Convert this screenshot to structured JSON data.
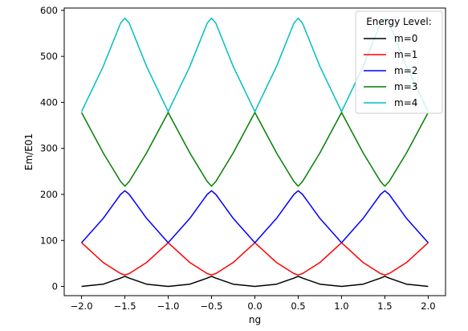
{
  "chart_data": {
    "type": "line",
    "title": "",
    "xlabel": "ng",
    "ylabel": "Em/E01",
    "xlim": [
      -2.2,
      2.2
    ],
    "ylim": [
      -20,
      605
    ],
    "x_ticks": [
      -2.0,
      -1.5,
      -1.0,
      -0.5,
      0.0,
      0.5,
      1.0,
      1.5,
      2.0
    ],
    "x_tick_labels": [
      "−2.0",
      "−1.5",
      "−1.0",
      "−0.5",
      "0.0",
      "0.5",
      "1.0",
      "1.5",
      "2.0"
    ],
    "y_ticks": [
      0,
      100,
      200,
      300,
      400,
      500,
      600
    ],
    "y_tick_labels": [
      "0",
      "100",
      "200",
      "300",
      "400",
      "500",
      "600"
    ],
    "grid": false,
    "legend": {
      "title": "Energy Level:",
      "placement": "top-right"
    },
    "series": [
      {
        "name": "m=0",
        "color": "#000000",
        "x": [
          -2.0,
          -1.75,
          -1.55,
          -1.5,
          -1.45,
          -1.25,
          -1.0,
          -0.75,
          -0.55,
          -0.5,
          -0.45,
          -0.25,
          0.0,
          0.25,
          0.45,
          0.5,
          0.55,
          0.75,
          1.0,
          1.25,
          1.45,
          1.5,
          1.55,
          1.75,
          2.0
        ],
        "values": [
          0,
          5,
          18,
          22,
          18,
          5,
          0,
          5,
          18,
          22,
          18,
          5,
          0,
          5,
          18,
          22,
          18,
          5,
          0,
          5,
          18,
          22,
          18,
          5,
          0
        ]
      },
      {
        "name": "m=1",
        "color": "#ff0000",
        "x": [
          -2.0,
          -1.75,
          -1.55,
          -1.5,
          -1.45,
          -1.25,
          -1.0,
          -0.75,
          -0.55,
          -0.5,
          -0.45,
          -0.25,
          0.0,
          0.25,
          0.45,
          0.5,
          0.55,
          0.75,
          1.0,
          1.25,
          1.45,
          1.5,
          1.55,
          1.75,
          2.0
        ],
        "values": [
          95,
          52,
          28,
          25,
          28,
          52,
          95,
          52,
          28,
          25,
          28,
          52,
          95,
          52,
          28,
          25,
          28,
          52,
          95,
          52,
          28,
          25,
          28,
          52,
          95
        ]
      },
      {
        "name": "m=2",
        "color": "#0000ff",
        "x": [
          -2.0,
          -1.75,
          -1.55,
          -1.5,
          -1.45,
          -1.25,
          -1.0,
          -0.75,
          -0.55,
          -0.5,
          -0.45,
          -0.25,
          0.0,
          0.25,
          0.45,
          0.5,
          0.55,
          0.75,
          1.0,
          1.25,
          1.45,
          1.5,
          1.55,
          1.75,
          2.0
        ],
        "values": [
          95,
          148,
          200,
          208,
          200,
          148,
          95,
          148,
          200,
          208,
          200,
          148,
          95,
          148,
          200,
          208,
          200,
          148,
          95,
          148,
          200,
          208,
          200,
          148,
          95
        ]
      },
      {
        "name": "m=3",
        "color": "#008000",
        "x": [
          -2.0,
          -1.75,
          -1.55,
          -1.5,
          -1.45,
          -1.25,
          -1.0,
          -0.75,
          -0.55,
          -0.5,
          -0.45,
          -0.25,
          0.0,
          0.25,
          0.45,
          0.5,
          0.55,
          0.75,
          1.0,
          1.25,
          1.45,
          1.5,
          1.55,
          1.75,
          2.0
        ],
        "values": [
          378,
          290,
          228,
          218,
          228,
          290,
          378,
          290,
          228,
          218,
          228,
          290,
          378,
          290,
          228,
          218,
          228,
          290,
          378,
          290,
          228,
          218,
          228,
          290,
          378
        ]
      },
      {
        "name": "m=4",
        "color": "#00bfbf",
        "x": [
          -2.0,
          -1.75,
          -1.55,
          -1.5,
          -1.45,
          -1.25,
          -1.0,
          -0.75,
          -0.55,
          -0.5,
          -0.45,
          -0.25,
          0.0,
          0.25,
          0.45,
          0.5,
          0.55,
          0.75,
          1.0,
          1.25,
          1.45,
          1.5,
          1.55,
          1.75,
          2.0
        ],
        "values": [
          380,
          478,
          572,
          583,
          572,
          478,
          380,
          478,
          572,
          583,
          572,
          478,
          380,
          478,
          572,
          583,
          572,
          478,
          380,
          478,
          572,
          583,
          572,
          478,
          380
        ]
      }
    ]
  }
}
